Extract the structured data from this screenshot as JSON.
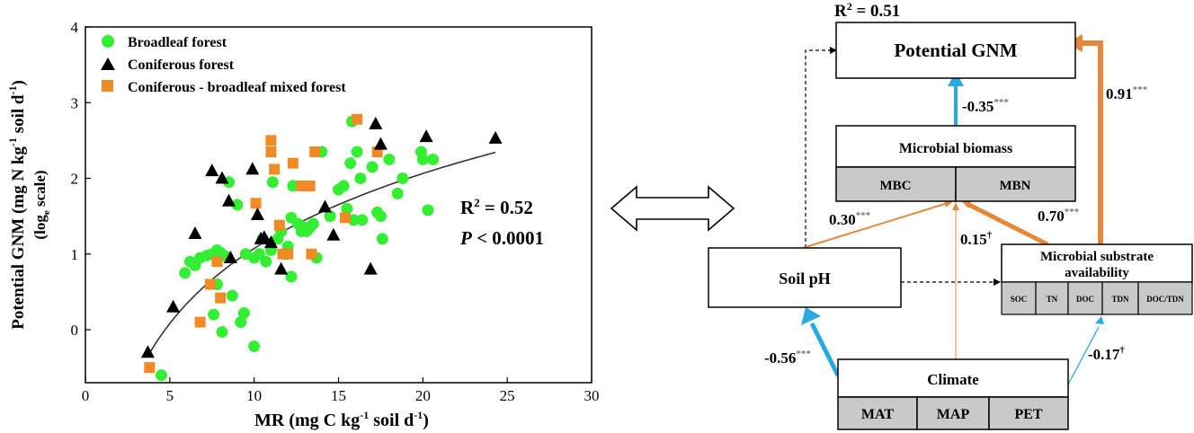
{
  "chart_data": {
    "type": "scatter",
    "xlabel": "MR (mg C kg",
    "xlabel_sup": "-1",
    "xlabel_end": " soil d",
    "xlabel_sup2": "-1",
    "xlabel_close": ")",
    "ylabel": "Potential GNM (mg N kg",
    "ylabel_sup": "-1",
    "ylabel_mid": " soil d",
    "ylabel_sup2": "-1",
    "ylabel_close": ")",
    "ylabel2": "(log",
    "ylabel2_sub": "e",
    "ylabel2_end": " scale)",
    "xlim": [
      0,
      30
    ],
    "ylim": [
      -0.7,
      4
    ],
    "xticks": [
      "0",
      "5",
      "10",
      "15",
      "20",
      "25",
      "30"
    ],
    "yticks": [
      "0",
      "1",
      "2",
      "3",
      "4"
    ],
    "legend_position": "top-left",
    "r2_label": "R",
    "r2_sup": "2",
    "r2_value": " = 0.52",
    "p_label": "P",
    "p_value": " < 0.0001",
    "fit": {
      "type": "log",
      "a": 1.43,
      "b": -2.22,
      "x_range": [
        3.7,
        24.3
      ]
    },
    "series": [
      {
        "name": "Broadleaf forest",
        "marker": "circle",
        "color": "#33ee33",
        "points": [
          [
            4.5,
            -0.6
          ],
          [
            5.9,
            0.75
          ],
          [
            6.2,
            0.9
          ],
          [
            6.5,
            0.85
          ],
          [
            6.8,
            0.95
          ],
          [
            7.2,
            0.98
          ],
          [
            7.5,
            1.0
          ],
          [
            7.8,
            1.05
          ],
          [
            8.0,
            1.02
          ],
          [
            8.3,
            0.97
          ],
          [
            7.8,
            0.6
          ],
          [
            7.6,
            0.2
          ],
          [
            8.1,
            -0.03
          ],
          [
            8.7,
            0.45
          ],
          [
            9.2,
            0.1
          ],
          [
            9.4,
            0.22
          ],
          [
            10.0,
            -0.22
          ],
          [
            8.5,
            1.95
          ],
          [
            9.0,
            1.65
          ],
          [
            9.5,
            1.0
          ],
          [
            10.0,
            0.95
          ],
          [
            10.3,
            1.0
          ],
          [
            10.5,
            1.2
          ],
          [
            10.7,
            0.9
          ],
          [
            11.0,
            1.05
          ],
          [
            11.1,
            1.95
          ],
          [
            11.4,
            1.2
          ],
          [
            11.6,
            1.3
          ],
          [
            11.9,
            1.0
          ],
          [
            12.0,
            1.1
          ],
          [
            12.2,
            1.48
          ],
          [
            12.3,
            1.9
          ],
          [
            12.2,
            0.7
          ],
          [
            12.6,
            1.4
          ],
          [
            12.8,
            1.3
          ],
          [
            13.1,
            1.3
          ],
          [
            13.3,
            1.35
          ],
          [
            13.5,
            1.4
          ],
          [
            13.7,
            0.95
          ],
          [
            14.0,
            2.35
          ],
          [
            14.5,
            1.5
          ],
          [
            15.0,
            1.85
          ],
          [
            15.3,
            1.9
          ],
          [
            15.5,
            1.6
          ],
          [
            15.7,
            2.2
          ],
          [
            15.9,
            1.45
          ],
          [
            16.1,
            2.35
          ],
          [
            15.8,
            2.75
          ],
          [
            16.3,
            2.0
          ],
          [
            16.4,
            1.45
          ],
          [
            17.0,
            2.15
          ],
          [
            17.3,
            1.55
          ],
          [
            17.5,
            1.5
          ],
          [
            17.6,
            1.2
          ],
          [
            18.0,
            2.25
          ],
          [
            18.5,
            1.8
          ],
          [
            18.8,
            2.0
          ],
          [
            19.9,
            2.35
          ],
          [
            20.0,
            2.25
          ],
          [
            20.3,
            1.58
          ],
          [
            20.6,
            2.25
          ],
          [
            13.0,
            1.35
          ]
        ]
      },
      {
        "name": "Coniferous forest",
        "marker": "triangle",
        "color": "#000000",
        "points": [
          [
            3.7,
            -0.3
          ],
          [
            5.2,
            0.3
          ],
          [
            6.5,
            1.27
          ],
          [
            7.5,
            2.1
          ],
          [
            8.1,
            2.0
          ],
          [
            8.5,
            1.7
          ],
          [
            8.6,
            0.95
          ],
          [
            9.9,
            2.12
          ],
          [
            10.2,
            1.52
          ],
          [
            10.4,
            1.2
          ],
          [
            10.6,
            1.22
          ],
          [
            11.0,
            1.15
          ],
          [
            11.6,
            0.8
          ],
          [
            14.2,
            1.62
          ],
          [
            14.7,
            1.25
          ],
          [
            16.9,
            0.8
          ],
          [
            17.2,
            2.72
          ],
          [
            17.5,
            2.45
          ],
          [
            20.2,
            2.55
          ],
          [
            24.3,
            2.53
          ]
        ]
      },
      {
        "name": "Coniferous - broadleaf mixed forest",
        "marker": "square",
        "color": "#f08a24",
        "points": [
          [
            3.8,
            -0.5
          ],
          [
            6.8,
            0.1
          ],
          [
            7.4,
            0.6
          ],
          [
            7.8,
            0.9
          ],
          [
            8.0,
            0.42
          ],
          [
            10.1,
            1.67
          ],
          [
            11.0,
            2.5
          ],
          [
            11.0,
            2.35
          ],
          [
            11.2,
            2.12
          ],
          [
            11.7,
            1.0
          ],
          [
            12.0,
            1.0
          ],
          [
            12.3,
            2.2
          ],
          [
            12.8,
            1.9
          ],
          [
            13.3,
            1.9
          ],
          [
            13.4,
            1.0
          ],
          [
            13.6,
            2.35
          ],
          [
            15.4,
            1.48
          ],
          [
            16.1,
            2.78
          ],
          [
            17.3,
            2.35
          ],
          [
            11.5,
            1.38
          ]
        ]
      }
    ]
  },
  "diagram": {
    "top_r2_label": "R",
    "top_r2_sup": "2",
    "top_r2_value": " = 0.51",
    "gnm_box": "Potential GNM",
    "biomass_title": "Microbial biomass",
    "biomass_cells": [
      "MBC",
      "MBN"
    ],
    "soil_ph": "Soil pH",
    "substrate_title_1": "Microbial substrate",
    "substrate_title_2": "availability",
    "substrate_cells": [
      "SOC",
      "TN",
      "DOC",
      "TDN",
      "DOC/TDN"
    ],
    "climate_title": "Climate",
    "climate_cells": [
      "MAT",
      "MAP",
      "PET"
    ],
    "coef_biomass_gnm": "-0.35",
    "coef_biomass_gnm_sig": "***",
    "coef_substrate_gnm": "0.91",
    "coef_substrate_gnm_sig": "***",
    "coef_ph_biomass": "0.30",
    "coef_ph_biomass_sig": "***",
    "coef_substrate_biomass": "0.70",
    "coef_substrate_biomass_sig": "***",
    "coef_climate_biomass": "0.15",
    "coef_climate_biomass_sig": "†",
    "coef_climate_ph": "-0.56",
    "coef_climate_ph_sig": "***",
    "coef_climate_substrate": "-0.17",
    "coef_climate_substrate_sig": "†",
    "colors": {
      "positive": "#e4893c",
      "negative": "#2aa9e0",
      "cell_fill": "#c9c9c9"
    }
  }
}
